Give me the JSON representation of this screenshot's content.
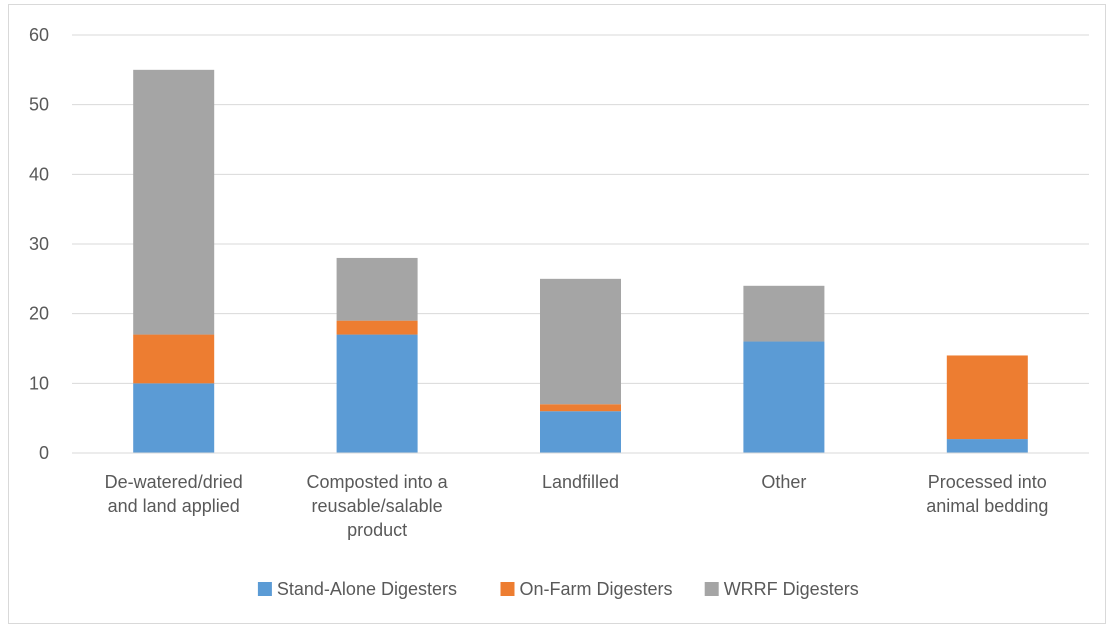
{
  "chart_data": {
    "type": "bar",
    "stacked": true,
    "categories": [
      [
        "De-watered/dried",
        "and land applied"
      ],
      [
        "Composted into a",
        "reusable/salable",
        "product"
      ],
      [
        "Landfilled"
      ],
      [
        "Other"
      ],
      [
        "Processed into",
        "animal bedding"
      ]
    ],
    "series": [
      {
        "name": "Stand-Alone Digesters",
        "color": "#5b9bd5",
        "values": [
          10,
          17,
          6,
          16,
          2
        ]
      },
      {
        "name": "On-Farm Digesters",
        "color": "#ed7d31",
        "values": [
          7,
          2,
          1,
          0,
          12
        ]
      },
      {
        "name": "WRRF Digesters",
        "color": "#a5a5a5",
        "values": [
          38,
          9,
          18,
          8,
          0
        ]
      }
    ],
    "ylim": [
      0,
      60
    ],
    "yticks": [
      0,
      10,
      20,
      30,
      40,
      50,
      60
    ],
    "title": "",
    "xlabel": "",
    "ylabel": "",
    "grid": true,
    "legend_position": "bottom",
    "gridline_color": "#d9d9d9",
    "axis_color": "#d9d9d9"
  }
}
